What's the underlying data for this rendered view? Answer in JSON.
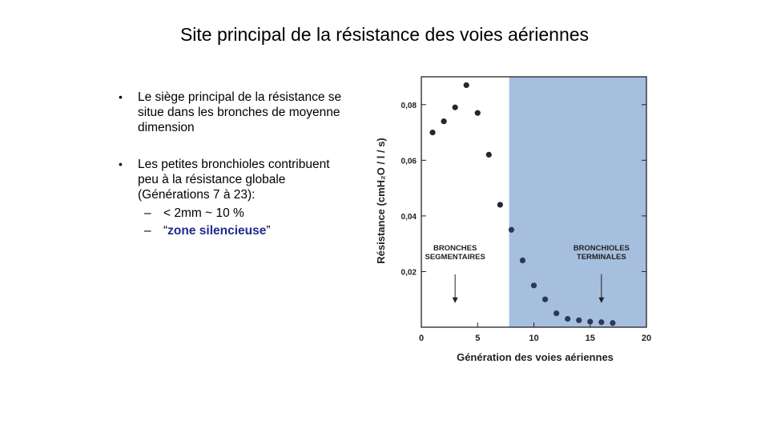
{
  "slide": {
    "title": "Site principal de la résistance des voies aériennes",
    "bullets": [
      "Le siège principal de la résistance se situe dans les bronches de moyenne dimension",
      "Les petites bronchioles contribuent peu à la résistance globale (Générations 7 à 23):"
    ],
    "sub_bullets": {
      "item1": "< 2mm ~ 10 %",
      "item2_open": "“",
      "item2_emph": "zone silencieuse",
      "item2_close": "”"
    },
    "bullet_symbol": "•",
    "dash_symbol": "–"
  },
  "colors": {
    "shaded_region": "#a6bfdf",
    "points": "#222833",
    "emphasis_text": "#1f2b8f"
  },
  "chart_data": {
    "type": "scatter",
    "xlabel": "Génération des voies aériennes",
    "ylabel": "Résistance (cmH₂O / l / s)",
    "xlim": [
      0,
      20
    ],
    "ylim": [
      0,
      0.09
    ],
    "xticks": [
      0,
      5,
      10,
      15,
      20
    ],
    "yticks": [
      0.02,
      0.04,
      0.06,
      0.08
    ],
    "ytick_labels": [
      "0,02",
      "0,04",
      "0,06",
      "0,08"
    ],
    "shaded_x_range": [
      7.8,
      20
    ],
    "x": [
      1,
      2,
      3,
      4,
      5,
      6,
      7,
      8,
      9,
      10,
      11,
      12,
      13,
      14,
      15,
      16,
      17
    ],
    "y": [
      0.07,
      0.074,
      0.079,
      0.087,
      0.077,
      0.062,
      0.044,
      0.035,
      0.024,
      0.015,
      0.01,
      0.005,
      0.003,
      0.0025,
      0.002,
      0.0018,
      0.0015
    ],
    "annotations": [
      {
        "lines": [
          "BRONCHES",
          "SEGMENTAIRES"
        ],
        "x": 3,
        "arrow_from_y": 0.019,
        "arrow_to_y": 0.009
      },
      {
        "lines": [
          "BRONCHIOLES",
          "TERMINALES"
        ],
        "x": 16,
        "arrow_from_y": 0.019,
        "arrow_to_y": 0.009
      }
    ],
    "grid": false
  }
}
